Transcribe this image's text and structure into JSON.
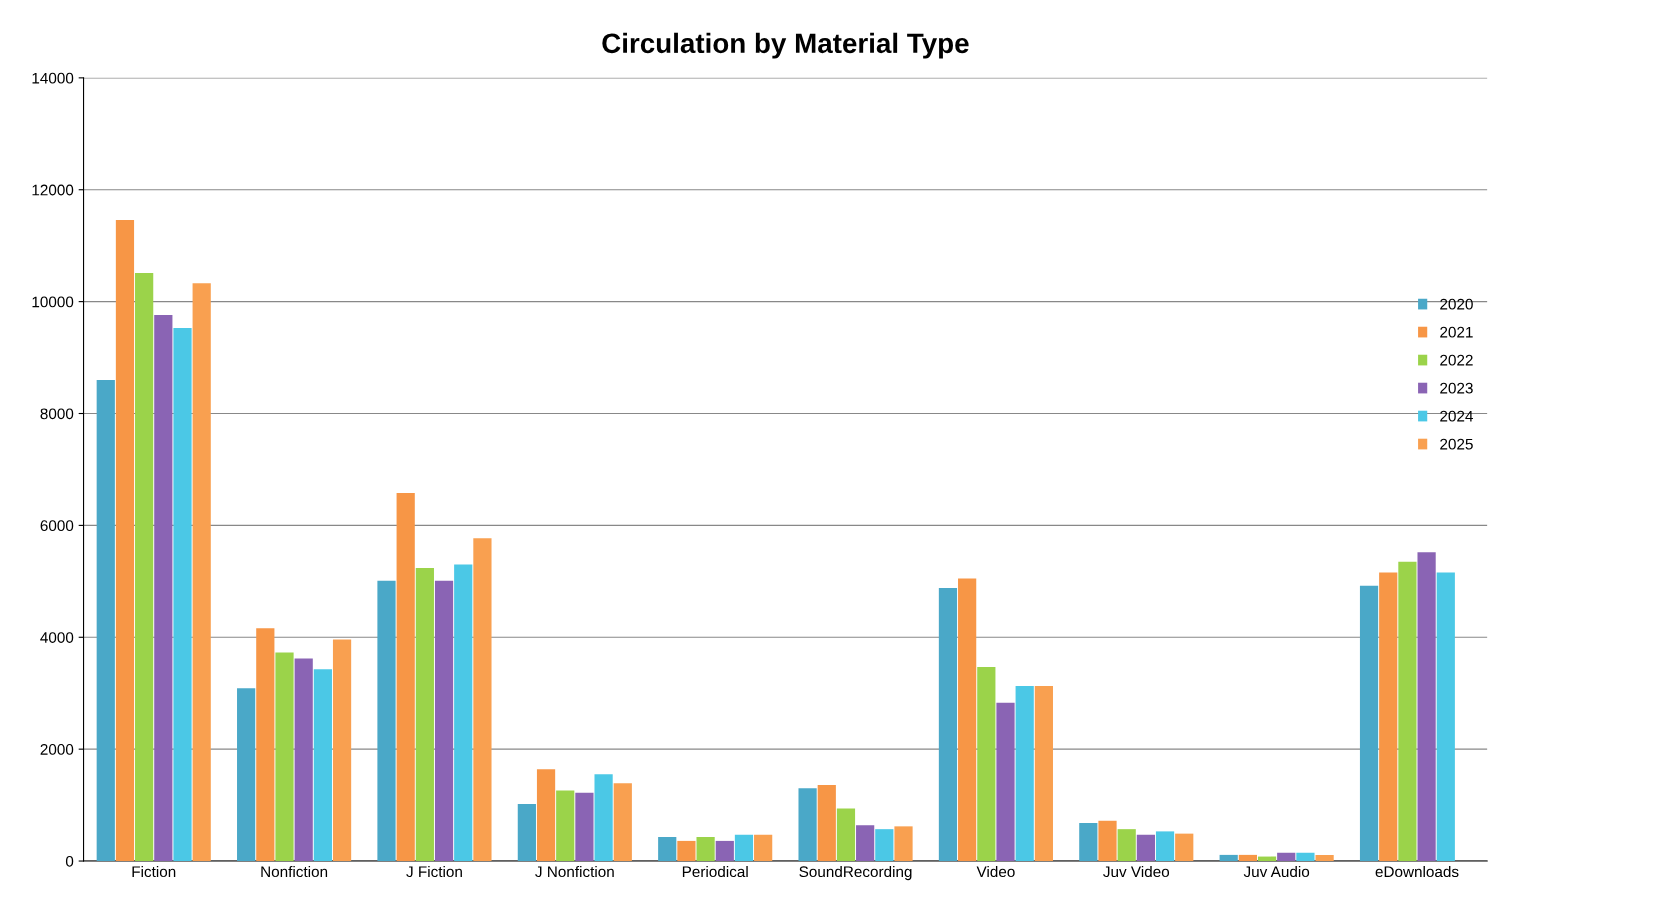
{
  "chart_data": {
    "type": "bar",
    "title": "Circulation by Material Type",
    "categories": [
      "Fiction",
      "Nonfiction",
      "J Fiction",
      "J Nonfiction",
      "Periodical",
      "SoundRecording",
      "Video",
      "Juv Video",
      "Juv Audio",
      "eDownloads"
    ],
    "series": [
      {
        "name": "2020",
        "color": "#4aa8c8",
        "values": [
          8600,
          3090,
          5010,
          1020,
          430,
          1300,
          4880,
          680,
          110,
          4920
        ]
      },
      {
        "name": "2021",
        "color": "#f79646",
        "values": [
          11460,
          4160,
          6580,
          1640,
          360,
          1360,
          5050,
          720,
          110,
          5160
        ]
      },
      {
        "name": "2022",
        "color": "#9bd34a",
        "values": [
          10510,
          3730,
          5240,
          1260,
          430,
          940,
          3470,
          570,
          80,
          5350
        ]
      },
      {
        "name": "2023",
        "color": "#8a64b4",
        "values": [
          9760,
          3620,
          5010,
          1220,
          360,
          640,
          2830,
          470,
          150,
          5520
        ]
      },
      {
        "name": "2024",
        "color": "#4bc8e6",
        "values": [
          9530,
          3430,
          5300,
          1550,
          470,
          570,
          3130,
          530,
          150,
          5160
        ]
      },
      {
        "name": "2025",
        "color": "#f9a050",
        "values": [
          10330,
          3960,
          5770,
          1390,
          470,
          620,
          3130,
          490,
          110,
          null
        ]
      }
    ],
    "ylim": [
      0,
      14000
    ],
    "yticks": [
      0,
      2000,
      4000,
      6000,
      8000,
      10000,
      12000,
      14000
    ],
    "grid": "y",
    "legend": "right"
  }
}
